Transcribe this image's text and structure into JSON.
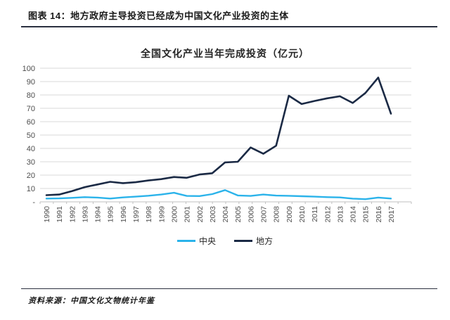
{
  "header": {
    "title": "图表 14：地方政府主导投资已经成为中国文化产业投资的主体"
  },
  "chart_data": {
    "type": "line",
    "title": "全国文化产业当年完成投资（亿元）",
    "categories": [
      "1990",
      "1991",
      "1992",
      "1993",
      "1994",
      "1995",
      "1996",
      "1997",
      "1998",
      "1999",
      "2000",
      "2001",
      "2002",
      "2003",
      "2004",
      "2005",
      "2006",
      "2007",
      "2008",
      "2009",
      "2010",
      "2011",
      "2012",
      "2013",
      "2014",
      "2015",
      "2016",
      "2017"
    ],
    "series": [
      {
        "name": "中央",
        "color": "#2BB3EA",
        "values": [
          2.5,
          2.6,
          3.0,
          3.5,
          3.2,
          2.5,
          3.3,
          3.9,
          4.6,
          5.5,
          6.8,
          4.4,
          4.3,
          5.8,
          8.8,
          4.8,
          4.4,
          5.5,
          4.7,
          4.5,
          4.2,
          3.9,
          3.5,
          3.3,
          2.4,
          2.0,
          3.2,
          2.5
        ]
      },
      {
        "name": "地方",
        "color": "#1B2A45",
        "values": [
          5.0,
          5.5,
          8.0,
          11.0,
          13.0,
          15.0,
          14.0,
          14.7,
          16.0,
          17.0,
          18.6,
          18.0,
          20.5,
          21.4,
          29.5,
          30.0,
          40.7,
          36.0,
          42.0,
          79.4,
          73.2,
          75.5,
          77.5,
          79.0,
          74.0,
          81.5,
          93.0,
          66.0
        ]
      }
    ],
    "ylim": [
      0,
      100
    ],
    "ytick_step": 10,
    "ytick_labels": [
      "-",
      "10",
      "20",
      "30",
      "40",
      "50",
      "60",
      "70",
      "80",
      "90",
      "100"
    ],
    "grid": true,
    "legend_position": "bottom"
  },
  "footer": {
    "source": "资料来源：中国文化文物统计年鉴"
  }
}
